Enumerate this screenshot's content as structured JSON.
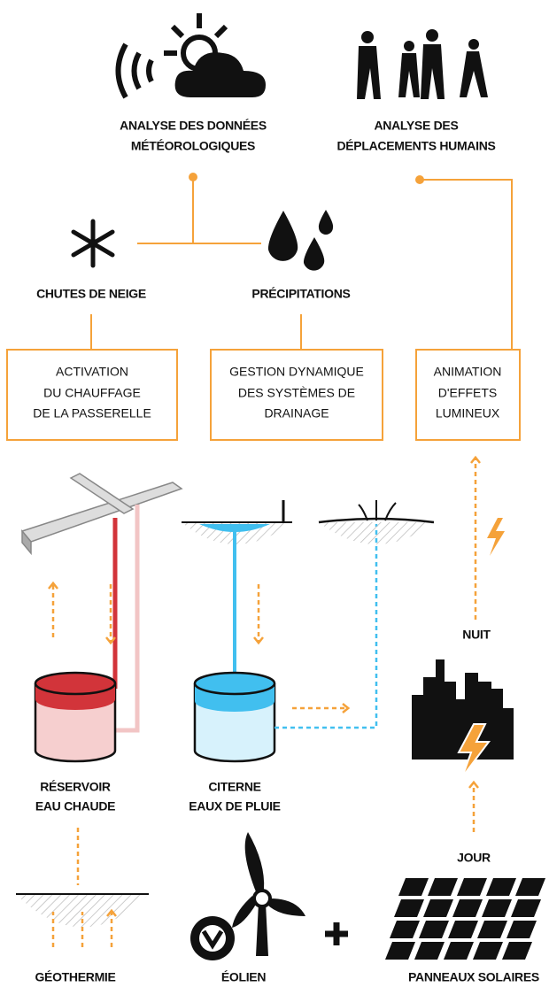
{
  "nodes": [
    {
      "lines": [
        "ANALYSE DES DONNÉES",
        "MÉTÉOROLOGIQUES"
      ]
    },
    {
      "lines": [
        "ANALYSE DES",
        "DÉPLACEMENTS HUMAINS"
      ]
    },
    {
      "lines": [
        "CHUTES DE NEIGE"
      ]
    },
    {
      "lines": [
        "PRÉCIPITATIONS"
      ]
    },
    {
      "lines": [
        "ACTIVATION",
        "DU CHAUFFAGE",
        "DE LA PASSERELLE"
      ]
    },
    {
      "lines": [
        "GESTION DYNAMIQUE",
        "DES SYSTÈMES DE",
        "DRAINAGE"
      ]
    },
    {
      "lines": [
        "ANIMATION",
        "D'EFFETS",
        "LUMINEUX"
      ]
    },
    {
      "lines": [
        "NUIT"
      ]
    },
    {
      "lines": [
        "RÉSERVOIR",
        "EAU CHAUDE"
      ]
    },
    {
      "lines": [
        "CITERNE",
        "EAUX DE PLUIE"
      ]
    },
    {
      "lines": [
        "JOUR"
      ]
    },
    {
      "lines": [
        "GÉOTHERMIE"
      ]
    },
    {
      "lines": [
        "ÉOLIEN"
      ]
    },
    {
      "lines": [
        "PANNEAUX SOLAIRES"
      ]
    }
  ]
}
